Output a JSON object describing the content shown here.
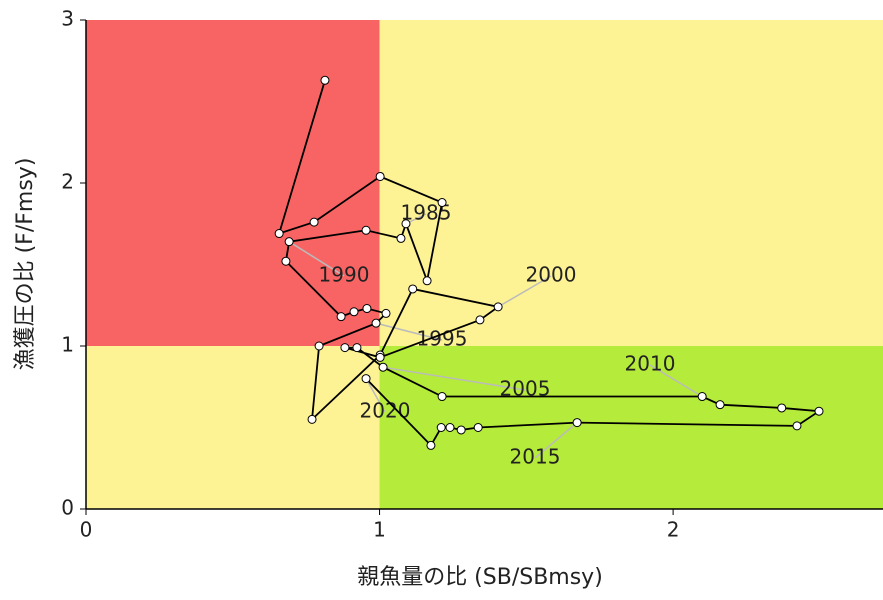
{
  "chart_data": {
    "type": "line",
    "x_label": "親魚量の比 (SB/SBmsy)",
    "y_label": "漁獲圧の比 (F/Fmsy)",
    "xlim": [
      0,
      2.715
    ],
    "ylim": [
      0,
      3
    ],
    "xticks": [
      0,
      1,
      2
    ],
    "yticks": [
      0,
      1,
      2,
      3
    ],
    "zones": {
      "x_ref": 1,
      "y_ref": 1,
      "colors": {
        "red": "#f86464",
        "yellow": "#fdf294",
        "green": "#b5eb3a"
      }
    },
    "series": [
      {
        "color": "#000000",
        "x": [
          0.814,
          0.658,
          0.777,
          1.002,
          1.213,
          1.162,
          1.09,
          1.073,
          0.954,
          0.692,
          0.681,
          0.869,
          0.913,
          0.957,
          1.022,
          0.988,
          0.794,
          0.77,
          1.002,
          1.113,
          1.404,
          1.342,
          1.002,
          0.882,
          0.923,
          1.012,
          1.213,
          2.099,
          2.16,
          2.37,
          2.497,
          2.422,
          1.673,
          1.336,
          1.278,
          1.24,
          1.21,
          1.175,
          0.954
        ],
        "values": [
          2.63,
          1.69,
          1.76,
          2.04,
          1.88,
          1.4,
          1.75,
          1.66,
          1.71,
          1.64,
          1.52,
          1.18,
          1.21,
          1.23,
          1.2,
          1.14,
          1.0,
          0.55,
          0.945,
          1.35,
          1.24,
          1.16,
          0.93,
          0.99,
          0.99,
          0.87,
          0.69,
          0.69,
          0.64,
          0.62,
          0.6,
          0.51,
          0.53,
          0.5,
          0.485,
          0.5,
          0.5,
          0.39,
          0.8
        ]
      }
    ],
    "annotations": [
      "1985",
      "1990",
      "1995",
      "2000",
      "2005",
      "2010",
      "2015",
      "2020"
    ]
  }
}
